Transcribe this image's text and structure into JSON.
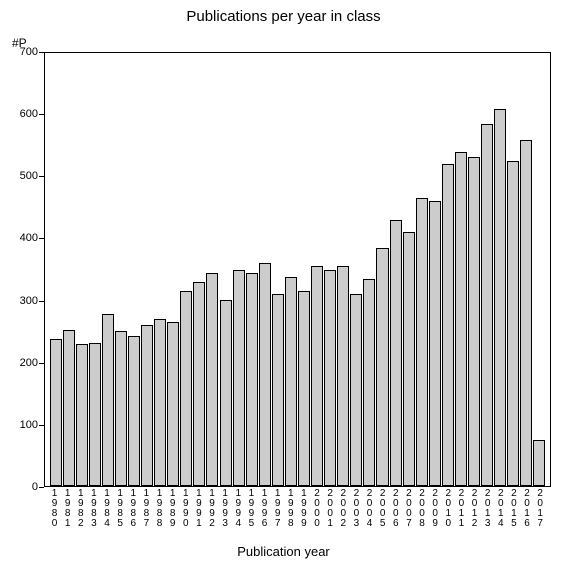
{
  "chart": {
    "type": "bar",
    "title": "Publications per year in class",
    "title_fontsize": 15,
    "y_axis_short_label": "#P",
    "xlabel": "Publication year",
    "xlabel_fontsize": 13,
    "ylim": [
      0,
      700
    ],
    "yticks": [
      0,
      100,
      200,
      300,
      400,
      500,
      600,
      700
    ],
    "ytick_fontsize": 11,
    "categories": [
      "1980",
      "1981",
      "1982",
      "1983",
      "1984",
      "1985",
      "1986",
      "1987",
      "1988",
      "1989",
      "1990",
      "1991",
      "1992",
      "1993",
      "1994",
      "1995",
      "1996",
      "1997",
      "1998",
      "1999",
      "2000",
      "2001",
      "2002",
      "2003",
      "2004",
      "2005",
      "2006",
      "2007",
      "2008",
      "2009",
      "2010",
      "2011",
      "2012",
      "2013",
      "2014",
      "2015",
      "2016",
      "2017"
    ],
    "values": [
      238,
      252,
      230,
      232,
      278,
      250,
      242,
      260,
      270,
      265,
      315,
      330,
      345,
      300,
      350,
      345,
      360,
      310,
      338,
      315,
      355,
      350,
      355,
      310,
      335,
      385,
      430,
      410,
      465,
      460,
      520,
      540,
      532,
      585,
      610,
      525,
      560,
      75
    ],
    "bar_fill": "#cccccc",
    "bar_border": "#000000",
    "background_color": "#ffffff",
    "axis_color": "#000000",
    "xlabel_fontsize_ticks": 10
  }
}
